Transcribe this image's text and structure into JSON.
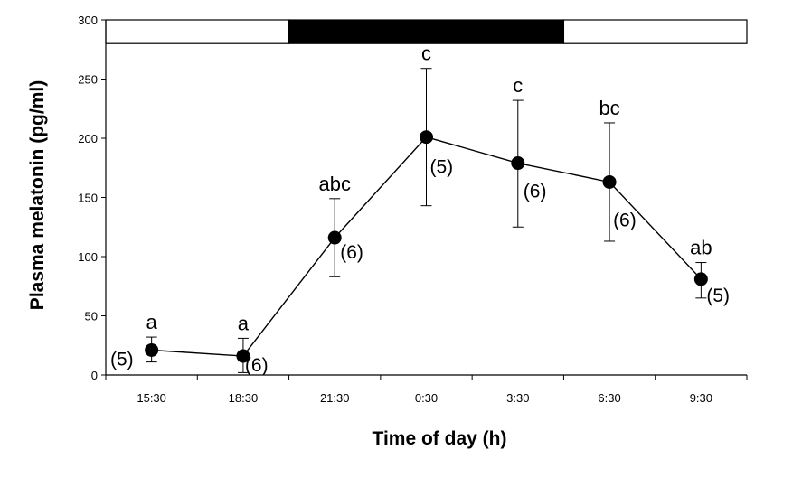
{
  "chart_data": {
    "type": "line",
    "title": "",
    "xlabel": "Time of day (h)",
    "ylabel": "Plasma melatonin (pg/ml)",
    "categories": [
      "15:30",
      "18:30",
      "21:30",
      "0:30",
      "3:30",
      "6:30",
      "9:30"
    ],
    "values": [
      21,
      16,
      116,
      201,
      179,
      163,
      81
    ],
    "error_low": [
      11,
      2,
      83,
      143,
      125,
      113,
      65
    ],
    "error_high": [
      32,
      31,
      149,
      259,
      232,
      213,
      95
    ],
    "significance_labels": [
      "a",
      "a",
      "abc",
      "c",
      "c",
      "bc",
      "ab"
    ],
    "sample_sizes": [
      "(5)",
      "(6)",
      "(6)",
      "(5)",
      "(6)",
      "(6)",
      "(5)"
    ],
    "ylim": [
      0,
      300
    ],
    "yticks": [
      "0",
      "50",
      "100",
      "150",
      "200",
      "250",
      "300"
    ],
    "grid": false,
    "legend": "none",
    "light_dark_bar": {
      "segments": [
        {
          "phase": "light",
          "color": "#ffffff",
          "from_category": -0.5,
          "to_category": 1.5
        },
        {
          "phase": "dark",
          "color": "#000000",
          "from_category": 1.5,
          "to_category": 4.5
        },
        {
          "phase": "light",
          "color": "#ffffff",
          "from_category": 4.5,
          "to_category": 6.5
        }
      ]
    },
    "colors": {
      "line": "#000000",
      "marker": "#000000"
    }
  }
}
